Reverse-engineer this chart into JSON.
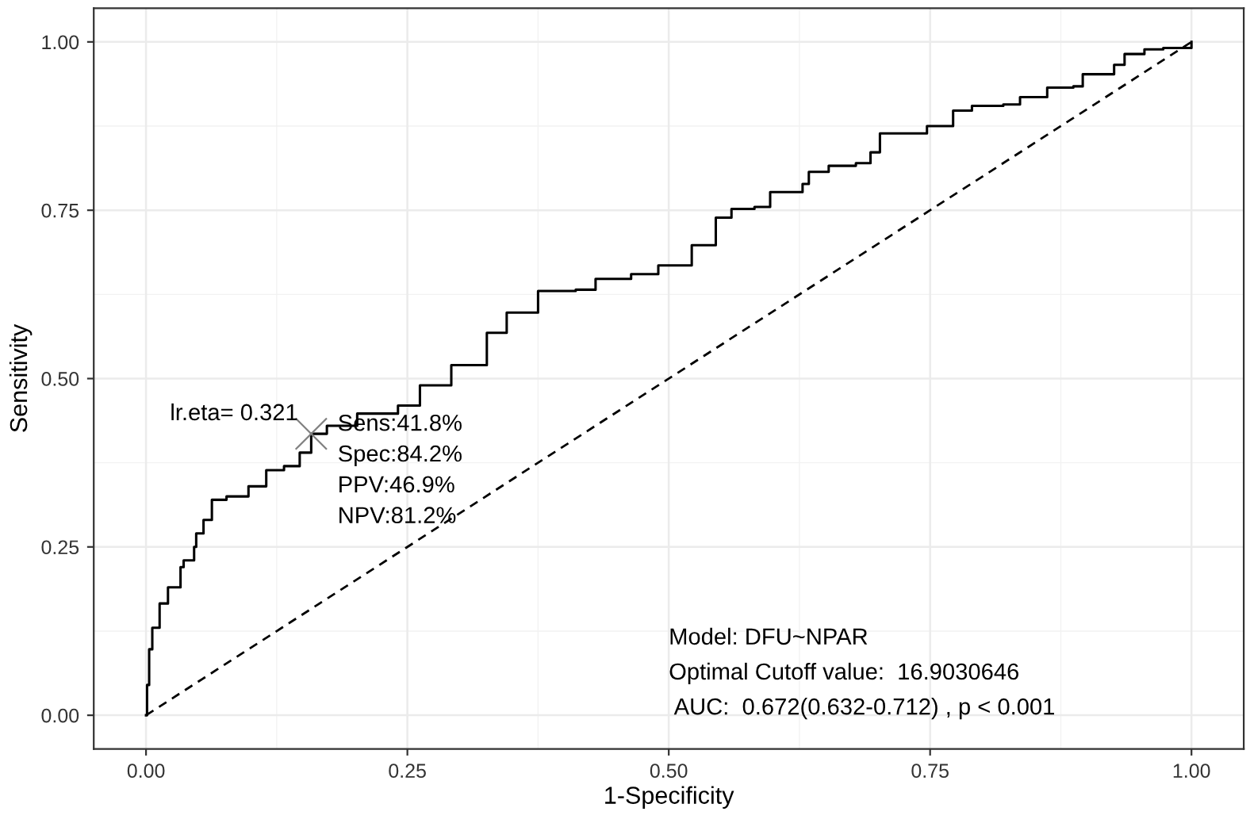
{
  "chart_data": {
    "type": "step",
    "xlabel": "1-Specificity",
    "ylabel": "Sensitivity",
    "xlim": [
      -0.05,
      1.05
    ],
    "ylim": [
      -0.05,
      1.05
    ],
    "xticks": [
      {
        "value": 0,
        "label": "0.00"
      },
      {
        "value": 0.25,
        "label": "0.25"
      },
      {
        "value": 0.5,
        "label": "0.50"
      },
      {
        "value": 0.75,
        "label": "0.75"
      },
      {
        "value": 1,
        "label": "1.00"
      }
    ],
    "yticks": [
      {
        "value": 0,
        "label": "0.00"
      },
      {
        "value": 0.25,
        "label": "0.25"
      },
      {
        "value": 0.5,
        "label": "0.50"
      },
      {
        "value": 0.75,
        "label": "0.75"
      },
      {
        "value": 1,
        "label": "1.00"
      }
    ],
    "grid": true,
    "legend": false,
    "series": [
      {
        "color": "#000000",
        "line_style": "solid",
        "x": [
          0,
          0.001,
          0.003,
          0.006,
          0.013,
          0.021,
          0.033,
          0.036,
          0.046,
          0.048,
          0.055,
          0.063,
          0.077,
          0.098,
          0.115,
          0.132,
          0.147,
          0.158,
          0.173,
          0.202,
          0.241,
          0.262,
          0.292,
          0.326,
          0.345,
          0.375,
          0.411,
          0.43,
          0.464,
          0.49,
          0.513,
          0.522,
          0.545,
          0.56,
          0.582,
          0.597,
          0.628,
          0.634,
          0.653,
          0.679,
          0.693,
          0.702,
          0.747,
          0.772,
          0.79,
          0.82,
          0.836,
          0.862,
          0.887,
          0.896,
          0.926,
          0.936,
          0.955,
          0.973,
          1
        ],
        "values": [
          0,
          0.045,
          0.098,
          0.13,
          0.166,
          0.19,
          0.22,
          0.23,
          0.25,
          0.27,
          0.29,
          0.32,
          0.325,
          0.34,
          0.364,
          0.37,
          0.39,
          0.418,
          0.43,
          0.448,
          0.46,
          0.49,
          0.52,
          0.568,
          0.598,
          0.63,
          0.632,
          0.648,
          0.655,
          0.668,
          0.668,
          0.698,
          0.739,
          0.752,
          0.755,
          0.777,
          0.789,
          0.807,
          0.816,
          0.82,
          0.836,
          0.864,
          0.875,
          0.898,
          0.905,
          0.907,
          0.918,
          0.932,
          0.934,
          0.952,
          0.966,
          0.982,
          0.989,
          0.991,
          1
        ]
      },
      {
        "type": "line",
        "color": "#000000",
        "line_style": "dashed",
        "x": [
          0,
          1
        ],
        "values": [
          0,
          1
        ]
      },
      {
        "type": "scatter",
        "color": "#808080",
        "marker": "cross",
        "x": [
          0.158
        ],
        "values": [
          0.418
        ]
      }
    ],
    "annotations": [
      {
        "text": "lr.eta= 0.321",
        "x": 0.158,
        "y": 0.418
      },
      {
        "text": "Sens:41.8%\nSpec:84.2%\nPPV:46.9%\nNPV:81.2%",
        "x": 0.158,
        "y": 0.418
      },
      "Model: DFU~NPAR",
      "Optimal Cutoff value:  16.9030646",
      " AUC:  0.672(0.632-0.712) , p < 0.001"
    ]
  }
}
